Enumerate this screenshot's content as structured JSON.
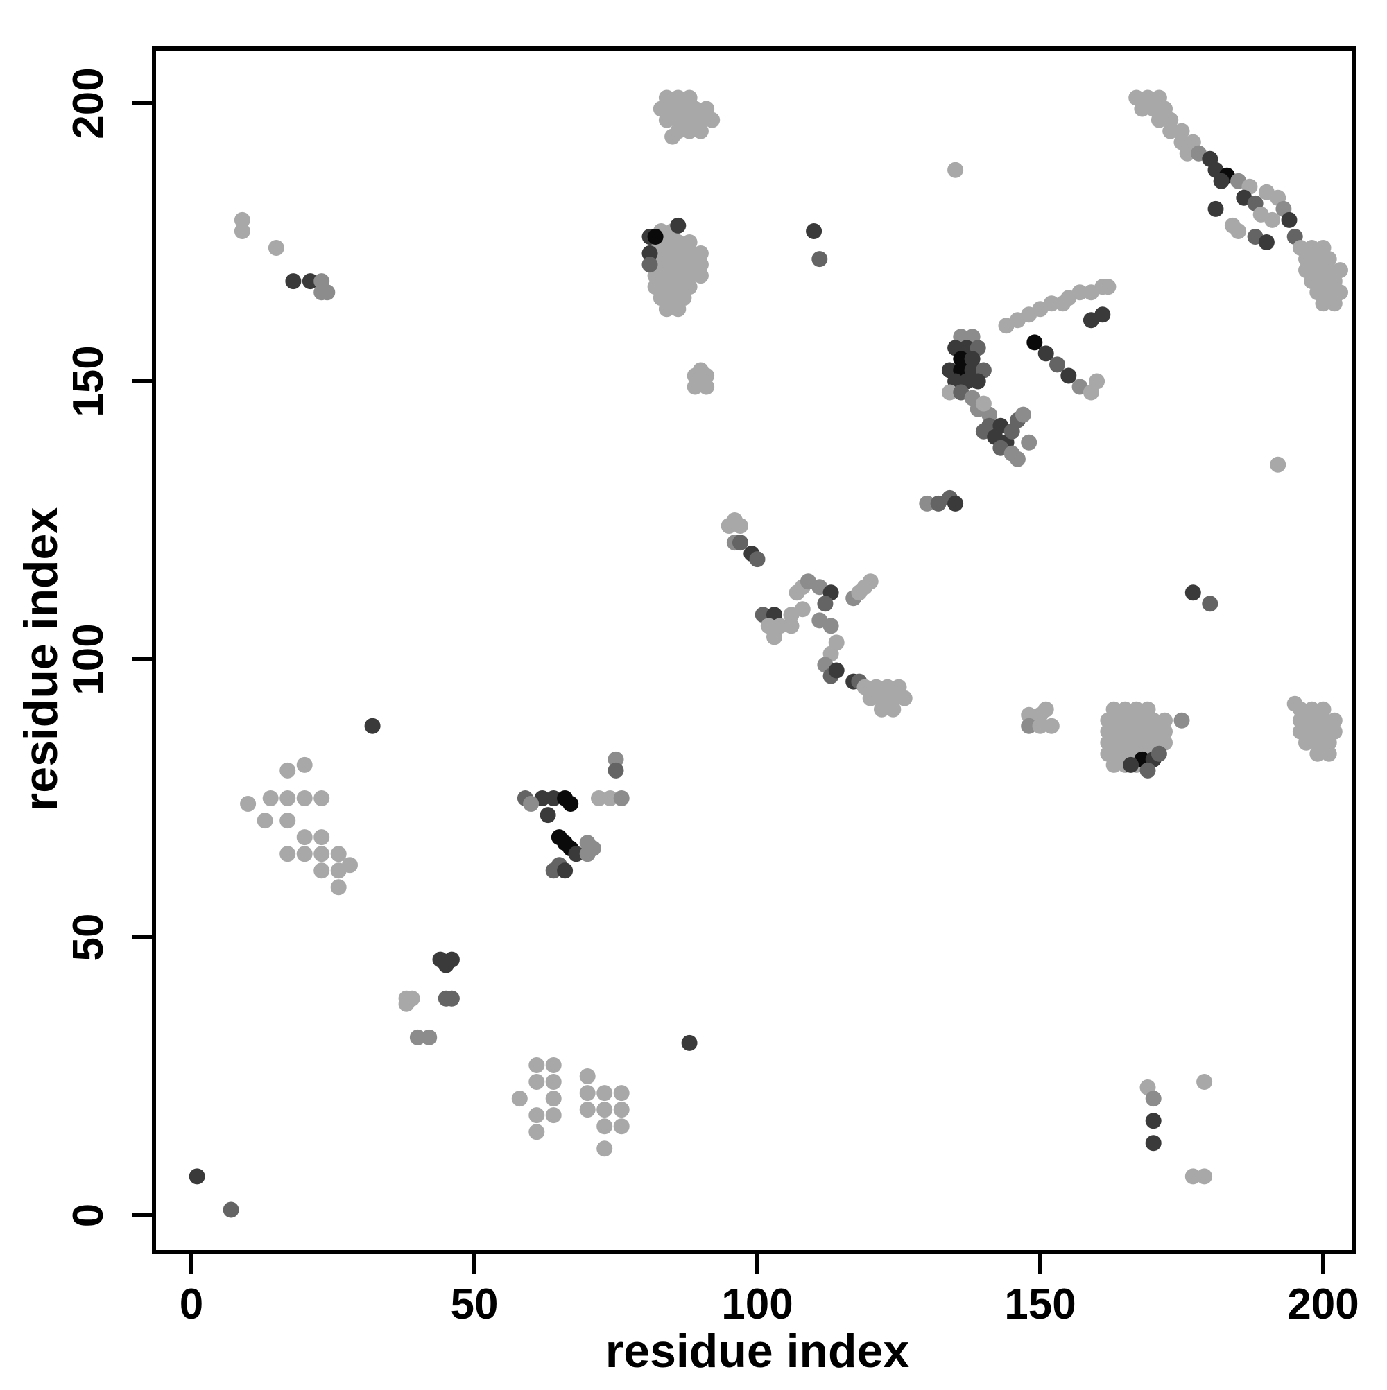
{
  "figure": {
    "xlabel": "residue index",
    "ylabel": "residue index"
  },
  "chart_data": {
    "type": "scatter",
    "title": "",
    "subtitle": "",
    "xlabel": "residue index",
    "ylabel": "residue index",
    "xlim": [
      -7,
      206
    ],
    "ylim": [
      -7,
      210
    ],
    "x_ticks": [
      0,
      50,
      100,
      150,
      200
    ],
    "y_ticks": [
      0,
      50,
      100,
      150,
      200
    ],
    "grid": false,
    "legend": "none",
    "marker": "circle",
    "marker_radius_px": 11.5,
    "palette": [
      "#0a0a0a",
      "#3a3a3a",
      "#646464",
      "#8c8c8c",
      "#a8a8a8"
    ],
    "points_format": "[x, y, palette_index] where palette_index 0=black ... 4=light gray",
    "points": [
      [
        1,
        7,
        1
      ],
      [
        7,
        1,
        2
      ],
      [
        40,
        32,
        3
      ],
      [
        42,
        32,
        3
      ],
      [
        38,
        39,
        4
      ],
      [
        38,
        38,
        4
      ],
      [
        39,
        39,
        4
      ],
      [
        45,
        39,
        2
      ],
      [
        46,
        39,
        2
      ],
      [
        44,
        46,
        1
      ],
      [
        45,
        45,
        1
      ],
      [
        46,
        46,
        1
      ],
      [
        61,
        27,
        4
      ],
      [
        64,
        27,
        4
      ],
      [
        61,
        24,
        4
      ],
      [
        64,
        24,
        4
      ],
      [
        58,
        21,
        4
      ],
      [
        64,
        21,
        4
      ],
      [
        61,
        18,
        4
      ],
      [
        64,
        18,
        4
      ],
      [
        61,
        15,
        4
      ],
      [
        70,
        25,
        4
      ],
      [
        70,
        22,
        4
      ],
      [
        73,
        22,
        4
      ],
      [
        76,
        22,
        4
      ],
      [
        70,
        19,
        4
      ],
      [
        73,
        19,
        4
      ],
      [
        76,
        19,
        4
      ],
      [
        73,
        16,
        4
      ],
      [
        76,
        16,
        4
      ],
      [
        73,
        12,
        4
      ],
      [
        88,
        31,
        1
      ],
      [
        17,
        80,
        4
      ],
      [
        20,
        81,
        4
      ],
      [
        14,
        75,
        4
      ],
      [
        17,
        75,
        4
      ],
      [
        20,
        75,
        4
      ],
      [
        23,
        75,
        4
      ],
      [
        10,
        74,
        4
      ],
      [
        13,
        71,
        4
      ],
      [
        17,
        71,
        4
      ],
      [
        20,
        68,
        4
      ],
      [
        23,
        68,
        4
      ],
      [
        17,
        65,
        4
      ],
      [
        20,
        65,
        4
      ],
      [
        23,
        65,
        4
      ],
      [
        26,
        65,
        4
      ],
      [
        23,
        62,
        4
      ],
      [
        26,
        62,
        4
      ],
      [
        28,
        63,
        4
      ],
      [
        26,
        59,
        4
      ],
      [
        32,
        88,
        1
      ],
      [
        62,
        75,
        1
      ],
      [
        64,
        75,
        1
      ],
      [
        66,
        75,
        0
      ],
      [
        67,
        74,
        0
      ],
      [
        59,
        75,
        2
      ],
      [
        60,
        74,
        3
      ],
      [
        63,
        72,
        1
      ],
      [
        65,
        68,
        0
      ],
      [
        66,
        67,
        0
      ],
      [
        67,
        66,
        0
      ],
      [
        68,
        65,
        1
      ],
      [
        65,
        63,
        2
      ],
      [
        64,
        62,
        2
      ],
      [
        66,
        62,
        1
      ],
      [
        70,
        67,
        3
      ],
      [
        71,
        66,
        3
      ],
      [
        70,
        65,
        3
      ],
      [
        75,
        82,
        3
      ],
      [
        75,
        80,
        2
      ],
      [
        72,
        75,
        4
      ],
      [
        74,
        75,
        4
      ],
      [
        76,
        75,
        3
      ],
      [
        83,
        177,
        4
      ],
      [
        85,
        177,
        4
      ],
      [
        82,
        175,
        4
      ],
      [
        84,
        175,
        4
      ],
      [
        86,
        175,
        4
      ],
      [
        88,
        175,
        4
      ],
      [
        82,
        173,
        4
      ],
      [
        84,
        173,
        4
      ],
      [
        86,
        173,
        4
      ],
      [
        88,
        173,
        4
      ],
      [
        90,
        173,
        4
      ],
      [
        82,
        171,
        4
      ],
      [
        84,
        171,
        4
      ],
      [
        86,
        171,
        4
      ],
      [
        88,
        171,
        4
      ],
      [
        90,
        171,
        4
      ],
      [
        82,
        169,
        4
      ],
      [
        84,
        169,
        4
      ],
      [
        86,
        169,
        4
      ],
      [
        88,
        169,
        4
      ],
      [
        90,
        169,
        4
      ],
      [
        82,
        167,
        4
      ],
      [
        84,
        167,
        4
      ],
      [
        86,
        167,
        4
      ],
      [
        88,
        167,
        4
      ],
      [
        83,
        165,
        4
      ],
      [
        85,
        165,
        4
      ],
      [
        87,
        165,
        4
      ],
      [
        84,
        163,
        4
      ],
      [
        86,
        163,
        4
      ],
      [
        81,
        176,
        1
      ],
      [
        82,
        176,
        0
      ],
      [
        81,
        173,
        1
      ],
      [
        81,
        171,
        2
      ],
      [
        86,
        178,
        1
      ],
      [
        84,
        201,
        4
      ],
      [
        86,
        201,
        4
      ],
      [
        88,
        201,
        4
      ],
      [
        83,
        199,
        4
      ],
      [
        85,
        199,
        4
      ],
      [
        87,
        199,
        4
      ],
      [
        89,
        199,
        4
      ],
      [
        91,
        199,
        4
      ],
      [
        84,
        197,
        4
      ],
      [
        86,
        197,
        4
      ],
      [
        88,
        197,
        4
      ],
      [
        90,
        197,
        4
      ],
      [
        92,
        197,
        4
      ],
      [
        86,
        195,
        4
      ],
      [
        88,
        195,
        4
      ],
      [
        90,
        195,
        4
      ],
      [
        85,
        194,
        4
      ],
      [
        9,
        179,
        4
      ],
      [
        9,
        177,
        4
      ],
      [
        15,
        174,
        4
      ],
      [
        18,
        168,
        1
      ],
      [
        21,
        168,
        1
      ],
      [
        23,
        168,
        3
      ],
      [
        23,
        166,
        3
      ],
      [
        24,
        166,
        3
      ],
      [
        89,
        151,
        4
      ],
      [
        91,
        151,
        4
      ],
      [
        89,
        149,
        4
      ],
      [
        91,
        149,
        4
      ],
      [
        90,
        152,
        4
      ],
      [
        96,
        125,
        4
      ],
      [
        97,
        124,
        4
      ],
      [
        95,
        124,
        4
      ],
      [
        96,
        121,
        3
      ],
      [
        97,
        121,
        2
      ],
      [
        99,
        119,
        1
      ],
      [
        100,
        118,
        2
      ],
      [
        101,
        108,
        2
      ],
      [
        103,
        108,
        1
      ],
      [
        102,
        106,
        4
      ],
      [
        104,
        106,
        4
      ],
      [
        106,
        106,
        4
      ],
      [
        103,
        104,
        4
      ],
      [
        106,
        108,
        4
      ],
      [
        108,
        109,
        4
      ],
      [
        108,
        113,
        4
      ],
      [
        109,
        114,
        3
      ],
      [
        107,
        112,
        4
      ],
      [
        111,
        113,
        3
      ],
      [
        113,
        112,
        1
      ],
      [
        112,
        110,
        2
      ],
      [
        111,
        107,
        3
      ],
      [
        113,
        106,
        3
      ],
      [
        114,
        103,
        4
      ],
      [
        113,
        101,
        4
      ],
      [
        112,
        99,
        3
      ],
      [
        113,
        97,
        2
      ],
      [
        114,
        98,
        1
      ],
      [
        117,
        111,
        3
      ],
      [
        118,
        112,
        4
      ],
      [
        120,
        114,
        4
      ],
      [
        119,
        113,
        4
      ],
      [
        117,
        96,
        1
      ],
      [
        118,
        96,
        2
      ],
      [
        119,
        95,
        4
      ],
      [
        121,
        95,
        4
      ],
      [
        123,
        95,
        4
      ],
      [
        125,
        95,
        4
      ],
      [
        120,
        93,
        4
      ],
      [
        122,
        93,
        4
      ],
      [
        124,
        93,
        4
      ],
      [
        122,
        91,
        4
      ],
      [
        124,
        91,
        4
      ],
      [
        126,
        93,
        4
      ],
      [
        110,
        177,
        1
      ],
      [
        111,
        172,
        2
      ],
      [
        130,
        128,
        3
      ],
      [
        132,
        128,
        2
      ],
      [
        134,
        129,
        2
      ],
      [
        135,
        128,
        1
      ],
      [
        136,
        158,
        3
      ],
      [
        138,
        158,
        3
      ],
      [
        135,
        156,
        1
      ],
      [
        137,
        156,
        1
      ],
      [
        139,
        156,
        2
      ],
      [
        136,
        154,
        0
      ],
      [
        138,
        154,
        1
      ],
      [
        134,
        152,
        1
      ],
      [
        136,
        152,
        0
      ],
      [
        138,
        152,
        1
      ],
      [
        140,
        152,
        2
      ],
      [
        135,
        150,
        1
      ],
      [
        137,
        150,
        1
      ],
      [
        139,
        150,
        1
      ],
      [
        134,
        148,
        4
      ],
      [
        136,
        148,
        2
      ],
      [
        138,
        147,
        3
      ],
      [
        139,
        145,
        3
      ],
      [
        141,
        144,
        3
      ],
      [
        140,
        146,
        4
      ],
      [
        141,
        142,
        2
      ],
      [
        143,
        142,
        1
      ],
      [
        140,
        141,
        2
      ],
      [
        142,
        140,
        1
      ],
      [
        144,
        139,
        1
      ],
      [
        143,
        138,
        2
      ],
      [
        145,
        137,
        3
      ],
      [
        146,
        136,
        3
      ],
      [
        146,
        143,
        2
      ],
      [
        147,
        144,
        3
      ],
      [
        145,
        141,
        2
      ],
      [
        148,
        139,
        3
      ],
      [
        149,
        157,
        0
      ],
      [
        151,
        155,
        1
      ],
      [
        153,
        153,
        2
      ],
      [
        155,
        151,
        1
      ],
      [
        157,
        149,
        3
      ],
      [
        159,
        148,
        4
      ],
      [
        160,
        150,
        4
      ],
      [
        144,
        160,
        4
      ],
      [
        146,
        161,
        4
      ],
      [
        148,
        162,
        4
      ],
      [
        150,
        163,
        4
      ],
      [
        152,
        164,
        4
      ],
      [
        154,
        164,
        4
      ],
      [
        155,
        165,
        4
      ],
      [
        157,
        166,
        4
      ],
      [
        159,
        166,
        4
      ],
      [
        161,
        167,
        4
      ],
      [
        162,
        167,
        4
      ],
      [
        159,
        161,
        1
      ],
      [
        161,
        162,
        1
      ],
      [
        148,
        90,
        4
      ],
      [
        150,
        90,
        4
      ],
      [
        148,
        88,
        3
      ],
      [
        150,
        88,
        4
      ],
      [
        152,
        88,
        4
      ],
      [
        151,
        91,
        4
      ],
      [
        163,
        91,
        4
      ],
      [
        165,
        91,
        4
      ],
      [
        167,
        91,
        4
      ],
      [
        169,
        91,
        4
      ],
      [
        162,
        89,
        4
      ],
      [
        164,
        89,
        4
      ],
      [
        166,
        89,
        4
      ],
      [
        168,
        89,
        4
      ],
      [
        170,
        89,
        4
      ],
      [
        172,
        89,
        4
      ],
      [
        162,
        87,
        4
      ],
      [
        164,
        87,
        4
      ],
      [
        166,
        87,
        4
      ],
      [
        168,
        87,
        4
      ],
      [
        170,
        87,
        4
      ],
      [
        172,
        87,
        4
      ],
      [
        162,
        85,
        4
      ],
      [
        164,
        85,
        4
      ],
      [
        166,
        85,
        4
      ],
      [
        168,
        85,
        4
      ],
      [
        170,
        85,
        4
      ],
      [
        172,
        85,
        4
      ],
      [
        162,
        83,
        4
      ],
      [
        164,
        83,
        4
      ],
      [
        166,
        83,
        4
      ],
      [
        168,
        83,
        4
      ],
      [
        170,
        83,
        4
      ],
      [
        163,
        81,
        4
      ],
      [
        165,
        81,
        4
      ],
      [
        167,
        81,
        4
      ],
      [
        168,
        82,
        0
      ],
      [
        170,
        82,
        1
      ],
      [
        171,
        83,
        2
      ],
      [
        166,
        81,
        1
      ],
      [
        169,
        80,
        2
      ],
      [
        175,
        89,
        3
      ],
      [
        196,
        91,
        4
      ],
      [
        198,
        91,
        4
      ],
      [
        200,
        91,
        4
      ],
      [
        196,
        89,
        4
      ],
      [
        198,
        89,
        4
      ],
      [
        200,
        89,
        4
      ],
      [
        202,
        89,
        4
      ],
      [
        196,
        87,
        4
      ],
      [
        198,
        87,
        4
      ],
      [
        200,
        87,
        4
      ],
      [
        202,
        87,
        4
      ],
      [
        197,
        85,
        4
      ],
      [
        199,
        85,
        4
      ],
      [
        201,
        85,
        4
      ],
      [
        199,
        83,
        4
      ],
      [
        201,
        83,
        4
      ],
      [
        195,
        92,
        4
      ],
      [
        169,
        23,
        4
      ],
      [
        170,
        21,
        3
      ],
      [
        170,
        17,
        1
      ],
      [
        170,
        13,
        1
      ],
      [
        179,
        24,
        4
      ],
      [
        177,
        7,
        4
      ],
      [
        179,
        7,
        4
      ],
      [
        192,
        135,
        4
      ],
      [
        177,
        112,
        1
      ],
      [
        180,
        110,
        2
      ],
      [
        135,
        188,
        4
      ],
      [
        167,
        201,
        4
      ],
      [
        169,
        201,
        4
      ],
      [
        171,
        201,
        4
      ],
      [
        168,
        199,
        4
      ],
      [
        170,
        199,
        4
      ],
      [
        172,
        199,
        4
      ],
      [
        171,
        197,
        4
      ],
      [
        173,
        197,
        4
      ],
      [
        173,
        195,
        4
      ],
      [
        175,
        195,
        4
      ],
      [
        175,
        193,
        4
      ],
      [
        177,
        193,
        4
      ],
      [
        176,
        191,
        4
      ],
      [
        178,
        191,
        3
      ],
      [
        180,
        190,
        1
      ],
      [
        181,
        188,
        1
      ],
      [
        183,
        187,
        0
      ],
      [
        182,
        186,
        1
      ],
      [
        185,
        186,
        3
      ],
      [
        187,
        185,
        4
      ],
      [
        186,
        183,
        1
      ],
      [
        188,
        182,
        2
      ],
      [
        181,
        181,
        1
      ],
      [
        190,
        184,
        4
      ],
      [
        192,
        183,
        4
      ],
      [
        189,
        180,
        4
      ],
      [
        191,
        179,
        4
      ],
      [
        193,
        181,
        3
      ],
      [
        194,
        179,
        1
      ],
      [
        188,
        176,
        2
      ],
      [
        190,
        175,
        1
      ],
      [
        184,
        178,
        4
      ],
      [
        185,
        177,
        4
      ],
      [
        195,
        176,
        2
      ],
      [
        196,
        174,
        4
      ],
      [
        198,
        174,
        4
      ],
      [
        200,
        174,
        4
      ],
      [
        197,
        172,
        4
      ],
      [
        199,
        172,
        4
      ],
      [
        201,
        172,
        4
      ],
      [
        197,
        170,
        4
      ],
      [
        199,
        170,
        4
      ],
      [
        201,
        170,
        4
      ],
      [
        203,
        170,
        4
      ],
      [
        198,
        168,
        4
      ],
      [
        200,
        168,
        4
      ],
      [
        202,
        168,
        4
      ],
      [
        199,
        166,
        4
      ],
      [
        201,
        166,
        4
      ],
      [
        203,
        166,
        4
      ],
      [
        200,
        164,
        4
      ],
      [
        202,
        164,
        4
      ]
    ]
  }
}
